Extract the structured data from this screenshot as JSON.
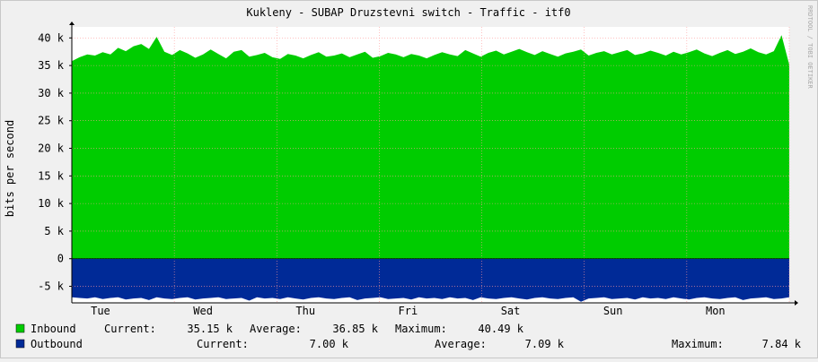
{
  "chart_data": {
    "type": "area",
    "title": "Kukleny - SUBAP Druzstevni switch - Traffic - itf0",
    "ylabel": "bits per second",
    "xlabel": "",
    "side_label": "RRDTOOL / TOBI OETIKER",
    "ylim": [
      -8000,
      42000
    ],
    "y_ticks": [
      {
        "value": 40000,
        "label": "40 k"
      },
      {
        "value": 35000,
        "label": "35 k"
      },
      {
        "value": 30000,
        "label": "30 k"
      },
      {
        "value": 25000,
        "label": "25 k"
      },
      {
        "value": 20000,
        "label": "20 k"
      },
      {
        "value": 15000,
        "label": "15 k"
      },
      {
        "value": 10000,
        "label": "10 k"
      },
      {
        "value": 5000,
        "label": "5 k"
      },
      {
        "value": 0,
        "label": "0"
      },
      {
        "value": -5000,
        "label": "-5 k"
      }
    ],
    "x_ticks": [
      "Tue",
      "Wed",
      "Thu",
      "Fri",
      "Sat",
      "Sun",
      "Mon"
    ],
    "x_range_days": [
      0,
      7
    ],
    "x_tick_positions": [
      0.28,
      1.28,
      2.28,
      3.28,
      4.28,
      5.28,
      6.28
    ],
    "series": [
      {
        "name": "Inbound",
        "color": "#00cc00",
        "sign": 1,
        "current": "35.15 k",
        "average": "36.85 k",
        "maximum": "40.49 k",
        "values": [
          35.8,
          36.5,
          37.0,
          36.8,
          37.4,
          37.0,
          38.2,
          37.6,
          38.5,
          38.9,
          38.0,
          40.2,
          37.5,
          36.9,
          37.8,
          37.2,
          36.4,
          37.0,
          37.9,
          37.1,
          36.3,
          37.5,
          37.8,
          36.6,
          36.9,
          37.3,
          36.5,
          36.2,
          37.1,
          36.8,
          36.3,
          36.9,
          37.4,
          36.6,
          36.8,
          37.2,
          36.5,
          37.0,
          37.5,
          36.4,
          36.7,
          37.3,
          37.0,
          36.5,
          37.1,
          36.8,
          36.3,
          36.9,
          37.4,
          37.0,
          36.7,
          37.8,
          37.2,
          36.6,
          37.3,
          37.7,
          37.0,
          37.5,
          38.0,
          37.4,
          36.9,
          37.6,
          37.1,
          36.6,
          37.2,
          37.5,
          37.9,
          36.8,
          37.3,
          37.6,
          37.0,
          37.4,
          37.8,
          36.9,
          37.2,
          37.7,
          37.3,
          36.8,
          37.5,
          37.0,
          37.4,
          37.9,
          37.2,
          36.7,
          37.3,
          37.8,
          37.1,
          37.5,
          38.1,
          37.4,
          37.0,
          37.6,
          40.5,
          35.15
        ],
        "values_unit": "kbit/s"
      },
      {
        "name": "Outbound",
        "color": "#002a97",
        "sign": -1,
        "current": "7.00 k",
        "average": "7.09 k",
        "maximum": "7.84 k",
        "values": [
          7.0,
          7.1,
          7.2,
          7.0,
          7.3,
          7.1,
          7.0,
          7.4,
          7.2,
          7.1,
          7.5,
          7.0,
          7.2,
          7.3,
          7.1,
          7.0,
          7.4,
          7.2,
          7.1,
          7.0,
          7.3,
          7.2,
          7.1,
          7.6,
          7.0,
          7.2,
          7.1,
          7.3,
          7.0,
          7.2,
          7.4,
          7.1,
          7.0,
          7.2,
          7.3,
          7.1,
          7.0,
          7.5,
          7.2,
          7.1,
          7.0,
          7.3,
          7.2,
          7.1,
          7.4,
          7.0,
          7.2,
          7.1,
          7.3,
          7.0,
          7.2,
          7.1,
          7.5,
          7.0,
          7.2,
          7.3,
          7.1,
          7.0,
          7.2,
          7.4,
          7.1,
          7.0,
          7.2,
          7.3,
          7.1,
          7.0,
          7.8,
          7.2,
          7.1,
          7.0,
          7.3,
          7.2,
          7.1,
          7.4,
          7.0,
          7.2,
          7.1,
          7.3,
          7.0,
          7.2,
          7.4,
          7.1,
          7.0,
          7.2,
          7.3,
          7.1,
          7.0,
          7.5,
          7.2,
          7.1,
          7.0,
          7.3,
          7.2,
          7.0
        ],
        "values_unit": "kbit/s"
      }
    ],
    "legend": {
      "current_label": "Current:",
      "average_label": "Average:",
      "maximum_label": "Maximum:"
    },
    "grid": true,
    "legend_position": "bottom-left"
  }
}
